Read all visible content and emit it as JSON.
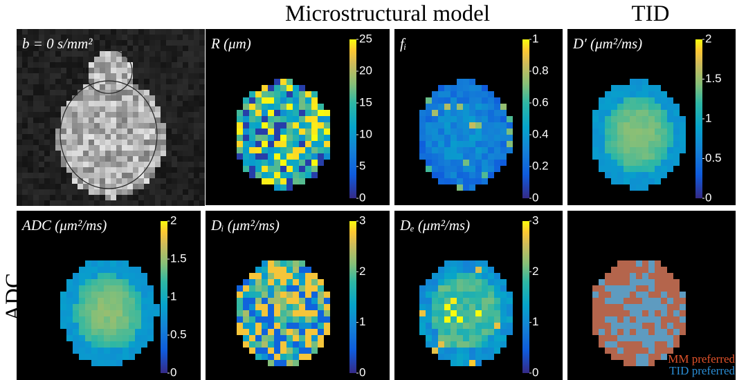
{
  "title_mm": "Microstructural model",
  "title_tid": "TID",
  "row_label": "ADC",
  "panels": [
    {
      "label": "b = 0 s/mm²"
    },
    {
      "label": "R (μm)",
      "colorbar": {
        "lim": [
          0,
          25
        ],
        "ticks": [
          0,
          5,
          10,
          15,
          20,
          25
        ]
      }
    },
    {
      "label": "fᵢ",
      "colorbar": {
        "lim": [
          0,
          1
        ],
        "ticks": [
          0,
          0.2,
          0.4,
          0.6,
          0.8,
          1
        ]
      }
    },
    {
      "label": "D′ (μm²/ms)",
      "colorbar": {
        "lim": [
          0,
          2
        ],
        "ticks": [
          0,
          0.5,
          1,
          1.5,
          2
        ]
      }
    },
    {
      "label": "ADC (μm²/ms)",
      "colorbar": {
        "lim": [
          0,
          2
        ],
        "ticks": [
          0,
          0.5,
          1,
          1.5,
          2
        ]
      }
    },
    {
      "label": "Dᵢ (μm²/ms)",
      "colorbar": {
        "lim": [
          0,
          3
        ],
        "ticks": [
          0,
          1,
          2,
          3
        ]
      }
    },
    {
      "label": "Dₑ (μm²/ms)",
      "colorbar": {
        "lim": [
          0,
          3
        ],
        "ticks": [
          0,
          1,
          2,
          3
        ]
      }
    },
    {
      "legend": [
        {
          "name": "MM preferred",
          "color": "#e0522a"
        },
        {
          "name": "TID preferred",
          "color": "#2a8ed6"
        }
      ]
    }
  ]
}
